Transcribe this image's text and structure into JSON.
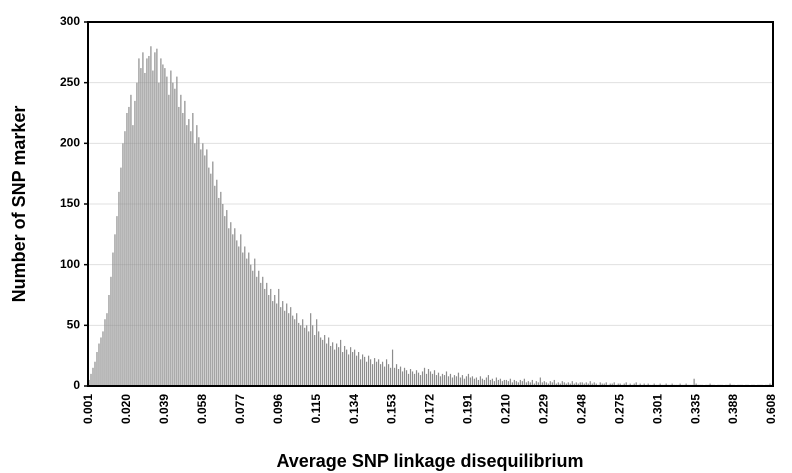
{
  "chart_data": {
    "type": "bar",
    "x_label": "Average SNP linkage disequilibrium",
    "y_label": "Number of SNP marker",
    "color": "#8c8c8c",
    "ylim": [
      0,
      300
    ],
    "yticks": [
      0,
      50,
      100,
      150,
      200,
      250,
      300
    ],
    "grid": true,
    "categories": [
      "0.001",
      null,
      null,
      null,
      null,
      null,
      null,
      null,
      null,
      null,
      null,
      null,
      null,
      null,
      null,
      null,
      null,
      null,
      null,
      "0.020",
      null,
      null,
      null,
      null,
      null,
      null,
      null,
      null,
      null,
      null,
      null,
      null,
      null,
      null,
      null,
      null,
      null,
      null,
      "0.039",
      null,
      null,
      null,
      null,
      null,
      null,
      null,
      null,
      null,
      null,
      null,
      null,
      null,
      null,
      null,
      null,
      null,
      null,
      "0.058",
      null,
      null,
      null,
      null,
      null,
      null,
      null,
      null,
      null,
      null,
      null,
      null,
      null,
      null,
      null,
      null,
      null,
      null,
      "0.077",
      null,
      null,
      null,
      null,
      null,
      null,
      null,
      null,
      null,
      null,
      null,
      null,
      null,
      null,
      null,
      null,
      null,
      null,
      "0.096",
      null,
      null,
      null,
      null,
      null,
      null,
      null,
      null,
      null,
      null,
      null,
      null,
      null,
      null,
      null,
      null,
      null,
      null,
      "0.115",
      null,
      null,
      null,
      null,
      null,
      null,
      null,
      null,
      null,
      null,
      null,
      null,
      null,
      null,
      null,
      null,
      null,
      null,
      "0.134",
      null,
      null,
      null,
      null,
      null,
      null,
      null,
      null,
      null,
      null,
      null,
      null,
      null,
      null,
      null,
      null,
      null,
      null,
      "0.153",
      null,
      null,
      null,
      null,
      null,
      null,
      null,
      null,
      null,
      null,
      null,
      null,
      null,
      null,
      null,
      null,
      null,
      null,
      "0.172",
      null,
      null,
      null,
      null,
      null,
      null,
      null,
      null,
      null,
      null,
      null,
      null,
      null,
      null,
      null,
      null,
      null,
      null,
      "0.191",
      null,
      null,
      null,
      null,
      null,
      null,
      null,
      null,
      null,
      null,
      null,
      null,
      null,
      null,
      null,
      null,
      null,
      null,
      "0.210",
      null,
      null,
      null,
      null,
      null,
      null,
      null,
      null,
      null,
      null,
      null,
      null,
      null,
      null,
      null,
      null,
      null,
      null,
      "0.229",
      null,
      null,
      null,
      null,
      null,
      null,
      null,
      null,
      null,
      null,
      null,
      null,
      null,
      null,
      null,
      null,
      null,
      null,
      "0.248",
      null,
      null,
      null,
      null,
      null,
      null,
      null,
      null,
      null,
      null,
      null,
      null,
      null,
      null,
      null,
      null,
      null,
      null,
      "0.275",
      null,
      null,
      null,
      null,
      null,
      null,
      null,
      null,
      null,
      null,
      null,
      null,
      null,
      null,
      null,
      null,
      null,
      null,
      "0.301",
      null,
      null,
      null,
      null,
      null,
      null,
      null,
      null,
      null,
      null,
      null,
      null,
      null,
      null,
      null,
      null,
      null,
      null,
      "0.335",
      null,
      null,
      null,
      null,
      null,
      null,
      null,
      null,
      null,
      null,
      null,
      null,
      null,
      null,
      null,
      null,
      null,
      null,
      "0.388",
      null,
      null,
      null,
      null,
      null,
      null,
      null,
      null,
      null,
      null,
      null,
      null,
      null,
      null,
      null,
      null,
      null,
      null,
      "0.608"
    ],
    "values": [
      5,
      10,
      15,
      20,
      28,
      35,
      40,
      45,
      55,
      60,
      75,
      90,
      110,
      125,
      140,
      160,
      180,
      200,
      210,
      225,
      230,
      240,
      215,
      235,
      250,
      270,
      262,
      275,
      258,
      270,
      272,
      280,
      260,
      275,
      278,
      250,
      270,
      265,
      262,
      255,
      240,
      260,
      250,
      245,
      255,
      230,
      240,
      225,
      235,
      215,
      220,
      210,
      225,
      200,
      215,
      205,
      195,
      200,
      190,
      195,
      180,
      175,
      185,
      165,
      170,
      155,
      160,
      150,
      140,
      145,
      130,
      135,
      125,
      130,
      120,
      115,
      125,
      110,
      115,
      105,
      110,
      100,
      95,
      105,
      90,
      95,
      85,
      90,
      80,
      85,
      75,
      80,
      70,
      75,
      68,
      80,
      65,
      70,
      62,
      68,
      60,
      65,
      58,
      55,
      60,
      52,
      50,
      55,
      48,
      50,
      45,
      60,
      50,
      42,
      55,
      45,
      40,
      38,
      42,
      35,
      40,
      33,
      36,
      30,
      35,
      32,
      38,
      28,
      33,
      30,
      26,
      32,
      28,
      30,
      25,
      28,
      22,
      26,
      24,
      20,
      25,
      22,
      18,
      23,
      20,
      22,
      18,
      20,
      16,
      22,
      18,
      15,
      30,
      15,
      18,
      14,
      16,
      12,
      15,
      13,
      10,
      14,
      12,
      10,
      13,
      11,
      9,
      12,
      15,
      10,
      14,
      12,
      10,
      13,
      9,
      11,
      8,
      10,
      9,
      12,
      8,
      10,
      7,
      9,
      8,
      11,
      7,
      9,
      6,
      8,
      10,
      7,
      8,
      6,
      7,
      5,
      8,
      6,
      5,
      7,
      9,
      5,
      6,
      4,
      7,
      5,
      6,
      4,
      5,
      5,
      4,
      6,
      3,
      5,
      4,
      3,
      5,
      4,
      6,
      3,
      4,
      3,
      5,
      2,
      4,
      3,
      7,
      3,
      4,
      3,
      2,
      4,
      3,
      5,
      2,
      3,
      2,
      4,
      3,
      2,
      3,
      2,
      4,
      2,
      3,
      2,
      3,
      3,
      2,
      3,
      2,
      4,
      2,
      3,
      2,
      1,
      3,
      2,
      2,
      3,
      1,
      2,
      2,
      3,
      1,
      2,
      2,
      1,
      2,
      3,
      1,
      2,
      1,
      2,
      3,
      1,
      2,
      1,
      2,
      1,
      2,
      1,
      1,
      2,
      1,
      1,
      2,
      1,
      1,
      2,
      1,
      1,
      2,
      1,
      1,
      1,
      2,
      1,
      1,
      2,
      1,
      1,
      1,
      6,
      2,
      1,
      1,
      1,
      0,
      1,
      1,
      2,
      1,
      1,
      0,
      1,
      1,
      1,
      0,
      1,
      1,
      2,
      1,
      1,
      0,
      1,
      1,
      1,
      0,
      1,
      1,
      0,
      1,
      1,
      0,
      1,
      1,
      1,
      0,
      1,
      1,
      2,
      1
    ]
  }
}
